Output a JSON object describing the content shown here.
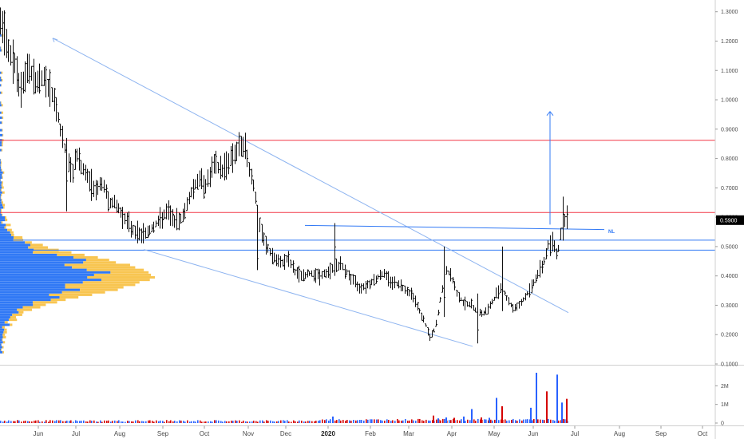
{
  "chart_data": {
    "type": "bar",
    "subtype": "ohlc-price-chart",
    "grid": false,
    "price_axis": {
      "position": "right",
      "range": [
        0.1,
        1.34
      ],
      "ticks": [
        "1.3000",
        "1.2000",
        "1.1000",
        "1.0000",
        "0.9000",
        "0.8000",
        "0.7000",
        "0.6000",
        "0.5000",
        "0.4000",
        "0.3000",
        "0.2000",
        "0.1000"
      ],
      "last_price_label": "0.5900",
      "last_price": 0.59,
      "last_price_color": "#000000"
    },
    "volume_axis": {
      "position": "right",
      "range": [
        0,
        3000000
      ],
      "ticks": [
        "2M",
        "1M",
        "0"
      ],
      "tick_values": [
        2000000,
        1000000,
        0
      ]
    },
    "time_axis": {
      "labels": [
        "Jun",
        "Jul",
        "Aug",
        "Sep",
        "Oct",
        "Nov",
        "Dec",
        "2020",
        "Feb",
        "Mar",
        "Apr",
        "May",
        "Jun",
        "Jul",
        "Aug",
        "Sep",
        "Oct"
      ],
      "bold_label": "2020"
    },
    "price_path": [
      [
        0,
        1.27
      ],
      [
        8,
        1.18
      ],
      [
        18,
        1.12
      ],
      [
        25,
        1.02
      ],
      [
        35,
        1.11
      ],
      [
        45,
        1.06
      ],
      [
        55,
        1.08
      ],
      [
        65,
        1.02
      ],
      [
        70,
        0.98
      ],
      [
        78,
        0.86
      ],
      [
        85,
        0.79
      ],
      [
        90,
        0.74
      ],
      [
        95,
        0.82
      ],
      [
        100,
        0.78
      ],
      [
        110,
        0.73
      ],
      [
        120,
        0.69
      ],
      [
        128,
        0.72
      ],
      [
        135,
        0.66
      ],
      [
        145,
        0.64
      ],
      [
        155,
        0.6
      ],
      [
        165,
        0.56
      ],
      [
        175,
        0.54
      ],
      [
        185,
        0.55
      ],
      [
        192,
        0.57
      ],
      [
        200,
        0.59
      ],
      [
        210,
        0.62
      ],
      [
        220,
        0.58
      ],
      [
        230,
        0.61
      ],
      [
        238,
        0.68
      ],
      [
        248,
        0.73
      ],
      [
        258,
        0.71
      ],
      [
        268,
        0.78
      ],
      [
        278,
        0.76
      ],
      [
        288,
        0.8
      ],
      [
        298,
        0.83
      ],
      [
        305,
        0.85
      ],
      [
        312,
        0.77
      ],
      [
        318,
        0.7
      ],
      [
        324,
        0.58
      ],
      [
        330,
        0.52
      ],
      [
        340,
        0.47
      ],
      [
        350,
        0.44
      ],
      [
        360,
        0.46
      ],
      [
        370,
        0.41
      ],
      [
        380,
        0.4
      ],
      [
        390,
        0.41
      ],
      [
        400,
        0.4
      ],
      [
        410,
        0.41
      ],
      [
        418,
        0.43
      ],
      [
        425,
        0.44
      ],
      [
        432,
        0.42
      ],
      [
        440,
        0.39
      ],
      [
        450,
        0.36
      ],
      [
        460,
        0.37
      ],
      [
        470,
        0.39
      ],
      [
        480,
        0.41
      ],
      [
        490,
        0.38
      ],
      [
        500,
        0.37
      ],
      [
        510,
        0.35
      ],
      [
        518,
        0.33
      ],
      [
        525,
        0.28
      ],
      [
        532,
        0.24
      ],
      [
        538,
        0.19
      ],
      [
        545,
        0.22
      ],
      [
        552,
        0.33
      ],
      [
        558,
        0.42
      ],
      [
        565,
        0.4
      ],
      [
        572,
        0.34
      ],
      [
        580,
        0.31
      ],
      [
        590,
        0.3
      ],
      [
        598,
        0.28
      ],
      [
        605,
        0.27
      ],
      [
        612,
        0.29
      ],
      [
        620,
        0.33
      ],
      [
        628,
        0.37
      ],
      [
        635,
        0.32
      ],
      [
        642,
        0.29
      ],
      [
        650,
        0.3
      ],
      [
        658,
        0.33
      ],
      [
        665,
        0.36
      ],
      [
        672,
        0.4
      ],
      [
        680,
        0.44
      ],
      [
        686,
        0.5
      ],
      [
        692,
        0.52
      ],
      [
        698,
        0.47
      ],
      [
        703,
        0.56
      ],
      [
        708,
        0.6
      ],
      [
        712,
        0.59
      ]
    ],
    "horizontal_levels": [
      {
        "price": 0.862,
        "color": "#f23645"
      },
      {
        "price": 0.616,
        "color": "#f23645"
      },
      {
        "price": 0.522,
        "color": "#3179f5"
      },
      {
        "price": 0.488,
        "color": "#3179f5"
      }
    ],
    "trendlines": [
      {
        "from": [
          66,
          1.21
        ],
        "to": [
          712,
          0.275
        ],
        "color": "#8eb4f0"
      },
      {
        "from": [
          180,
          0.49
        ],
        "to": [
          592,
          0.16
        ],
        "color": "#8eb4f0"
      },
      {
        "from": [
          382,
          0.572
        ],
        "to": [
          757,
          0.558
        ],
        "color": "#3179f5",
        "label": "NL"
      }
    ],
    "projection_arrow": {
      "x": 689,
      "from": 0.575,
      "to": 0.96,
      "color": "#3179f5"
    },
    "volume_profile_colors": {
      "up": "#3179f5",
      "down": "#f8c551"
    },
    "volume_bar_colors": {
      "up": "#2962ff",
      "down": "#d50000"
    },
    "volume_spikes": [
      {
        "x": 416,
        "v": 350000
      },
      {
        "x": 542,
        "v": 400000
      },
      {
        "x": 548,
        "v": 250000
      },
      {
        "x": 558,
        "v": 300000
      },
      {
        "x": 568,
        "v": 280000
      },
      {
        "x": 580,
        "v": 350000
      },
      {
        "x": 590,
        "v": 750000
      },
      {
        "x": 602,
        "v": 300000
      },
      {
        "x": 612,
        "v": 280000
      },
      {
        "x": 621,
        "v": 1350000
      },
      {
        "x": 628,
        "v": 900000
      },
      {
        "x": 664,
        "v": 820000
      },
      {
        "x": 671,
        "v": 2700000
      },
      {
        "x": 684,
        "v": 1700000
      },
      {
        "x": 697,
        "v": 2600000
      },
      {
        "x": 703,
        "v": 1100000
      },
      {
        "x": 709,
        "v": 1300000
      }
    ]
  },
  "annotations": {
    "neckline_label": "NL"
  }
}
